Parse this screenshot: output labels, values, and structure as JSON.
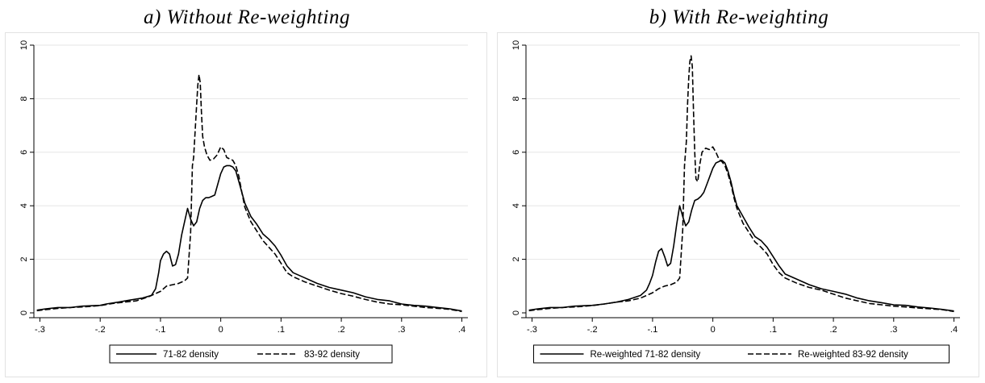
{
  "panels": [
    {
      "id": "a",
      "title": "a) Without Re-weighting",
      "legend": [
        "71-82 density",
        "83-92 density"
      ]
    },
    {
      "id": "b",
      "title": "b) With Re-weighting",
      "legend": [
        "Re-weighted 71-82 density",
        "Re-weighted 83-92 density"
      ]
    }
  ],
  "chart_data": [
    {
      "type": "line",
      "title": "a) Without Re-weighting",
      "xlim": [
        -0.31,
        0.41
      ],
      "ylim": [
        0,
        10
      ],
      "x_ticks": [
        -0.3,
        -0.2,
        -0.1,
        0,
        0.1,
        0.2,
        0.3,
        0.4
      ],
      "x_tick_labels": [
        "-.3",
        "-.2",
        "-.1",
        "0",
        ".1",
        ".2",
        ".3",
        ".4"
      ],
      "y_ticks": [
        0,
        2,
        4,
        6,
        8,
        10
      ],
      "y_tick_labels": [
        "0",
        "2",
        "4",
        "6",
        "8",
        "10"
      ],
      "grid": "horizontal",
      "legend_position": "bottom",
      "series": [
        {
          "name": "71-82 density",
          "style": "solid",
          "points": [
            [
              -0.305,
              0.1
            ],
            [
              -0.29,
              0.15
            ],
            [
              -0.27,
              0.2
            ],
            [
              -0.25,
              0.2
            ],
            [
              -0.23,
              0.25
            ],
            [
              -0.2,
              0.28
            ],
            [
              -0.19,
              0.33
            ],
            [
              -0.17,
              0.4
            ],
            [
              -0.15,
              0.48
            ],
            [
              -0.13,
              0.55
            ],
            [
              -0.115,
              0.65
            ],
            [
              -0.108,
              0.9
            ],
            [
              -0.103,
              1.5
            ],
            [
              -0.1,
              1.95
            ],
            [
              -0.095,
              2.2
            ],
            [
              -0.09,
              2.3
            ],
            [
              -0.085,
              2.2
            ],
            [
              -0.08,
              1.75
            ],
            [
              -0.075,
              1.8
            ],
            [
              -0.07,
              2.2
            ],
            [
              -0.065,
              2.9
            ],
            [
              -0.06,
              3.4
            ],
            [
              -0.055,
              3.9
            ],
            [
              -0.05,
              3.5
            ],
            [
              -0.045,
              3.25
            ],
            [
              -0.04,
              3.4
            ],
            [
              -0.035,
              3.9
            ],
            [
              -0.03,
              4.2
            ],
            [
              -0.025,
              4.3
            ],
            [
              -0.02,
              4.3
            ],
            [
              -0.015,
              4.35
            ],
            [
              -0.01,
              4.4
            ],
            [
              -0.005,
              4.8
            ],
            [
              0,
              5.2
            ],
            [
              0.005,
              5.45
            ],
            [
              0.01,
              5.5
            ],
            [
              0.015,
              5.5
            ],
            [
              0.02,
              5.45
            ],
            [
              0.025,
              5.3
            ],
            [
              0.03,
              4.9
            ],
            [
              0.035,
              4.5
            ],
            [
              0.04,
              4.1
            ],
            [
              0.05,
              3.6
            ],
            [
              0.06,
              3.3
            ],
            [
              0.07,
              2.95
            ],
            [
              0.08,
              2.75
            ],
            [
              0.09,
              2.5
            ],
            [
              0.1,
              2.15
            ],
            [
              0.11,
              1.75
            ],
            [
              0.12,
              1.5
            ],
            [
              0.14,
              1.3
            ],
            [
              0.16,
              1.1
            ],
            [
              0.18,
              0.95
            ],
            [
              0.2,
              0.85
            ],
            [
              0.22,
              0.75
            ],
            [
              0.24,
              0.6
            ],
            [
              0.26,
              0.5
            ],
            [
              0.28,
              0.45
            ],
            [
              0.3,
              0.33
            ],
            [
              0.32,
              0.28
            ],
            [
              0.34,
              0.25
            ],
            [
              0.36,
              0.2
            ],
            [
              0.38,
              0.15
            ],
            [
              0.4,
              0.07
            ]
          ]
        },
        {
          "name": "83-92 density",
          "style": "dashed",
          "points": [
            [
              -0.305,
              0.08
            ],
            [
              -0.29,
              0.12
            ],
            [
              -0.27,
              0.17
            ],
            [
              -0.25,
              0.2
            ],
            [
              -0.23,
              0.22
            ],
            [
              -0.2,
              0.27
            ],
            [
              -0.18,
              0.35
            ],
            [
              -0.16,
              0.4
            ],
            [
              -0.14,
              0.45
            ],
            [
              -0.12,
              0.6
            ],
            [
              -0.1,
              0.8
            ],
            [
              -0.09,
              1.0
            ],
            [
              -0.08,
              1.05
            ],
            [
              -0.07,
              1.1
            ],
            [
              -0.06,
              1.2
            ],
            [
              -0.055,
              1.3
            ],
            [
              -0.05,
              3.0
            ],
            [
              -0.047,
              5.5
            ],
            [
              -0.045,
              5.8
            ],
            [
              -0.042,
              7.0
            ],
            [
              -0.04,
              7.8
            ],
            [
              -0.038,
              8.5
            ],
            [
              -0.036,
              8.9
            ],
            [
              -0.034,
              8.6
            ],
            [
              -0.032,
              7.5
            ],
            [
              -0.03,
              6.6
            ],
            [
              -0.027,
              6.2
            ],
            [
              -0.023,
              5.9
            ],
            [
              -0.018,
              5.7
            ],
            [
              -0.012,
              5.75
            ],
            [
              -0.006,
              5.9
            ],
            [
              0,
              6.2
            ],
            [
              0.005,
              6.1
            ],
            [
              0.01,
              5.8
            ],
            [
              0.015,
              5.75
            ],
            [
              0.02,
              5.7
            ],
            [
              0.025,
              5.5
            ],
            [
              0.03,
              5.1
            ],
            [
              0.035,
              4.5
            ],
            [
              0.04,
              3.95
            ],
            [
              0.05,
              3.4
            ],
            [
              0.06,
              3.05
            ],
            [
              0.07,
              2.7
            ],
            [
              0.08,
              2.45
            ],
            [
              0.09,
              2.2
            ],
            [
              0.1,
              1.85
            ],
            [
              0.11,
              1.5
            ],
            [
              0.12,
              1.35
            ],
            [
              0.14,
              1.15
            ],
            [
              0.16,
              1.0
            ],
            [
              0.18,
              0.85
            ],
            [
              0.2,
              0.72
            ],
            [
              0.22,
              0.62
            ],
            [
              0.24,
              0.5
            ],
            [
              0.26,
              0.4
            ],
            [
              0.28,
              0.33
            ],
            [
              0.3,
              0.3
            ],
            [
              0.32,
              0.25
            ],
            [
              0.34,
              0.2
            ],
            [
              0.36,
              0.17
            ],
            [
              0.38,
              0.13
            ],
            [
              0.4,
              0.05
            ]
          ]
        }
      ]
    },
    {
      "type": "line",
      "title": "b) With Re-weighting",
      "xlim": [
        -0.31,
        0.41
      ],
      "ylim": [
        0,
        10
      ],
      "x_ticks": [
        -0.3,
        -0.2,
        -0.1,
        0,
        0.1,
        0.2,
        0.3,
        0.4
      ],
      "x_tick_labels": [
        "-.3",
        "-.2",
        "-.1",
        "0",
        ".1",
        ".2",
        ".3",
        ".4"
      ],
      "y_ticks": [
        0,
        2,
        4,
        6,
        8,
        10
      ],
      "y_tick_labels": [
        "0",
        "2",
        "4",
        "6",
        "8",
        "10"
      ],
      "grid": "horizontal",
      "legend_position": "bottom",
      "series": [
        {
          "name": "Re-weighted 71-82 density",
          "style": "solid",
          "points": [
            [
              -0.305,
              0.1
            ],
            [
              -0.29,
              0.15
            ],
            [
              -0.27,
              0.2
            ],
            [
              -0.25,
              0.2
            ],
            [
              -0.23,
              0.25
            ],
            [
              -0.2,
              0.28
            ],
            [
              -0.18,
              0.33
            ],
            [
              -0.16,
              0.4
            ],
            [
              -0.14,
              0.5
            ],
            [
              -0.12,
              0.65
            ],
            [
              -0.11,
              0.85
            ],
            [
              -0.105,
              1.1
            ],
            [
              -0.1,
              1.4
            ],
            [
              -0.095,
              1.9
            ],
            [
              -0.09,
              2.3
            ],
            [
              -0.085,
              2.4
            ],
            [
              -0.08,
              2.1
            ],
            [
              -0.075,
              1.75
            ],
            [
              -0.07,
              1.85
            ],
            [
              -0.065,
              2.5
            ],
            [
              -0.06,
              3.3
            ],
            [
              -0.055,
              4.0
            ],
            [
              -0.05,
              3.6
            ],
            [
              -0.045,
              3.25
            ],
            [
              -0.04,
              3.4
            ],
            [
              -0.035,
              3.85
            ],
            [
              -0.03,
              4.2
            ],
            [
              -0.025,
              4.25
            ],
            [
              -0.02,
              4.35
            ],
            [
              -0.015,
              4.5
            ],
            [
              -0.01,
              4.8
            ],
            [
              -0.005,
              5.1
            ],
            [
              0,
              5.4
            ],
            [
              0.005,
              5.6
            ],
            [
              0.01,
              5.65
            ],
            [
              0.015,
              5.7
            ],
            [
              0.02,
              5.6
            ],
            [
              0.025,
              5.3
            ],
            [
              0.03,
              4.9
            ],
            [
              0.035,
              4.4
            ],
            [
              0.04,
              4.0
            ],
            [
              0.05,
              3.6
            ],
            [
              0.06,
              3.2
            ],
            [
              0.07,
              2.85
            ],
            [
              0.08,
              2.7
            ],
            [
              0.09,
              2.45
            ],
            [
              0.1,
              2.1
            ],
            [
              0.11,
              1.75
            ],
            [
              0.12,
              1.45
            ],
            [
              0.14,
              1.25
            ],
            [
              0.16,
              1.05
            ],
            [
              0.18,
              0.9
            ],
            [
              0.2,
              0.8
            ],
            [
              0.22,
              0.7
            ],
            [
              0.24,
              0.55
            ],
            [
              0.26,
              0.45
            ],
            [
              0.28,
              0.38
            ],
            [
              0.3,
              0.3
            ],
            [
              0.32,
              0.28
            ],
            [
              0.34,
              0.22
            ],
            [
              0.36,
              0.18
            ],
            [
              0.38,
              0.13
            ],
            [
              0.4,
              0.07
            ]
          ]
        },
        {
          "name": "Re-weighted 83-92 density",
          "style": "dashed",
          "points": [
            [
              -0.305,
              0.08
            ],
            [
              -0.29,
              0.12
            ],
            [
              -0.27,
              0.17
            ],
            [
              -0.25,
              0.2
            ],
            [
              -0.23,
              0.22
            ],
            [
              -0.2,
              0.27
            ],
            [
              -0.18,
              0.33
            ],
            [
              -0.16,
              0.4
            ],
            [
              -0.14,
              0.45
            ],
            [
              -0.12,
              0.55
            ],
            [
              -0.1,
              0.75
            ],
            [
              -0.09,
              0.9
            ],
            [
              -0.08,
              1.0
            ],
            [
              -0.07,
              1.05
            ],
            [
              -0.06,
              1.15
            ],
            [
              -0.055,
              1.3
            ],
            [
              -0.05,
              3.1
            ],
            [
              -0.047,
              5.5
            ],
            [
              -0.044,
              6.4
            ],
            [
              -0.042,
              7.8
            ],
            [
              -0.04,
              8.8
            ],
            [
              -0.038,
              9.4
            ],
            [
              -0.036,
              9.6
            ],
            [
              -0.034,
              9.2
            ],
            [
              -0.032,
              7.5
            ],
            [
              -0.03,
              6.0
            ],
            [
              -0.028,
              5.0
            ],
            [
              -0.025,
              4.9
            ],
            [
              -0.022,
              5.5
            ],
            [
              -0.018,
              6.0
            ],
            [
              -0.012,
              6.15
            ],
            [
              -0.006,
              6.1
            ],
            [
              0,
              6.2
            ],
            [
              0.005,
              6.0
            ],
            [
              0.01,
              5.75
            ],
            [
              0.015,
              5.65
            ],
            [
              0.02,
              5.5
            ],
            [
              0.025,
              5.2
            ],
            [
              0.03,
              4.8
            ],
            [
              0.035,
              4.3
            ],
            [
              0.04,
              3.9
            ],
            [
              0.05,
              3.35
            ],
            [
              0.06,
              3.0
            ],
            [
              0.07,
              2.65
            ],
            [
              0.08,
              2.45
            ],
            [
              0.09,
              2.2
            ],
            [
              0.1,
              1.8
            ],
            [
              0.11,
              1.5
            ],
            [
              0.12,
              1.3
            ],
            [
              0.14,
              1.1
            ],
            [
              0.16,
              0.95
            ],
            [
              0.18,
              0.85
            ],
            [
              0.2,
              0.7
            ],
            [
              0.22,
              0.55
            ],
            [
              0.24,
              0.45
            ],
            [
              0.26,
              0.35
            ],
            [
              0.28,
              0.3
            ],
            [
              0.3,
              0.25
            ],
            [
              0.32,
              0.22
            ],
            [
              0.34,
              0.18
            ],
            [
              0.36,
              0.15
            ],
            [
              0.38,
              0.12
            ],
            [
              0.4,
              0.05
            ]
          ]
        }
      ]
    }
  ]
}
